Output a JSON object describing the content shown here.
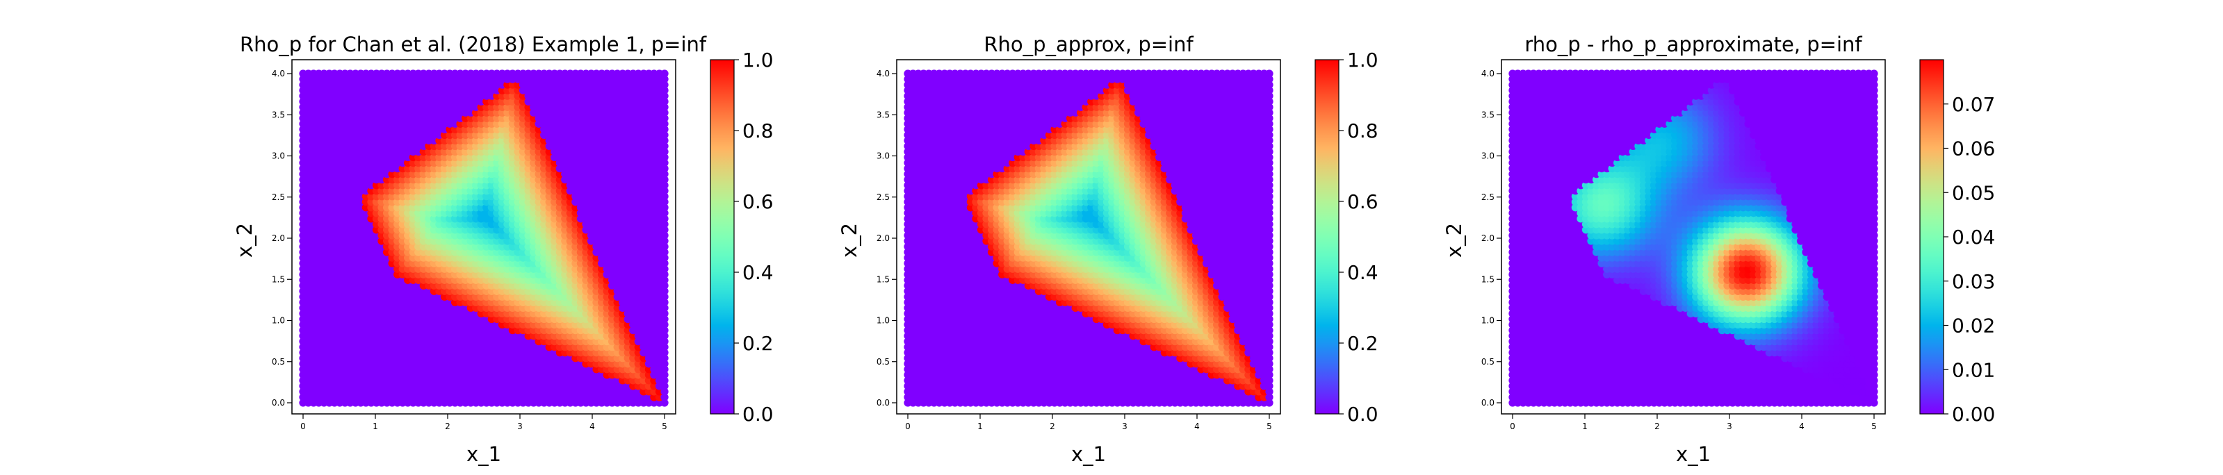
{
  "chart_data": [
    {
      "type": "scatter",
      "title": "Rho_p for Chan et al. (2018) Example 1, p=inf",
      "xlabel": "x_1",
      "ylabel": "x_2",
      "xlim": [
        0,
        5
      ],
      "ylim": [
        0,
        4
      ],
      "x_ticks": [
        "0",
        "1",
        "2",
        "3",
        "4",
        "5"
      ],
      "y_ticks": [
        "0.0",
        "0.5",
        "1.0",
        "1.5",
        "2.0",
        "2.5",
        "3.0",
        "3.5",
        "4.0"
      ],
      "colormap": "rainbow",
      "colorbar_range": [
        0,
        1
      ],
      "colorbar_ticks": [
        "0.0",
        "0.2",
        "0.4",
        "0.6",
        "0.8",
        "1.0"
      ],
      "grid": false,
      "field": {
        "kind": "polygon_distance",
        "polygon": [
          [
            0.8,
            2.5
          ],
          [
            2.95,
            3.95
          ],
          [
            5.0,
            0.0
          ],
          [
            1.3,
            1.55
          ]
        ],
        "inner_point": [
          2.55,
          2.2
        ],
        "outside_value": 0,
        "edge_value": 1.0,
        "center_value": 0.25
      }
    },
    {
      "type": "scatter",
      "title": "Rho_p_approx, p=inf",
      "xlabel": "x_1",
      "ylabel": "x_2",
      "xlim": [
        0,
        5
      ],
      "ylim": [
        0,
        4
      ],
      "x_ticks": [
        "0",
        "1",
        "2",
        "3",
        "4",
        "5"
      ],
      "y_ticks": [
        "0.0",
        "0.5",
        "1.0",
        "1.5",
        "2.0",
        "2.5",
        "3.0",
        "3.5",
        "4.0"
      ],
      "colormap": "rainbow",
      "colorbar_range": [
        0,
        1
      ],
      "colorbar_ticks": [
        "0.0",
        "0.2",
        "0.4",
        "0.6",
        "0.8",
        "1.0"
      ],
      "grid": false,
      "field": {
        "kind": "polygon_distance",
        "polygon": [
          [
            0.8,
            2.5
          ],
          [
            2.95,
            3.95
          ],
          [
            5.0,
            0.0
          ],
          [
            1.3,
            1.55
          ]
        ],
        "inner_point": [
          2.55,
          2.2
        ],
        "outside_value": 0,
        "edge_value": 1.0,
        "center_value": 0.25
      }
    },
    {
      "type": "scatter",
      "title": "rho_p - rho_p_approximate, p=inf",
      "xlabel": "x_1",
      "ylabel": "x_2",
      "xlim": [
        0,
        5
      ],
      "ylim": [
        0,
        4
      ],
      "x_ticks": [
        "0",
        "1",
        "2",
        "3",
        "4",
        "5"
      ],
      "y_ticks": [
        "0.0",
        "0.5",
        "1.0",
        "1.5",
        "2.0",
        "2.5",
        "3.0",
        "3.5",
        "4.0"
      ],
      "colormap": "rainbow",
      "colorbar_range": [
        0,
        0.08
      ],
      "colorbar_ticks": [
        "0.00",
        "0.01",
        "0.02",
        "0.03",
        "0.04",
        "0.05",
        "0.06",
        "0.07"
      ],
      "grid": false,
      "field": {
        "kind": "difference_blobs",
        "polygon": [
          [
            0.8,
            2.5
          ],
          [
            2.95,
            3.95
          ],
          [
            5.0,
            0.0
          ],
          [
            1.3,
            1.55
          ]
        ],
        "outside_value": 0,
        "blobs": [
          {
            "center": [
              3.25,
              1.6
            ],
            "value": 0.08
          },
          {
            "center": [
              1.25,
              2.4
            ],
            "value": 0.035
          },
          {
            "center": [
              2.1,
              3.2
            ],
            "value": 0.02
          }
        ]
      }
    }
  ]
}
